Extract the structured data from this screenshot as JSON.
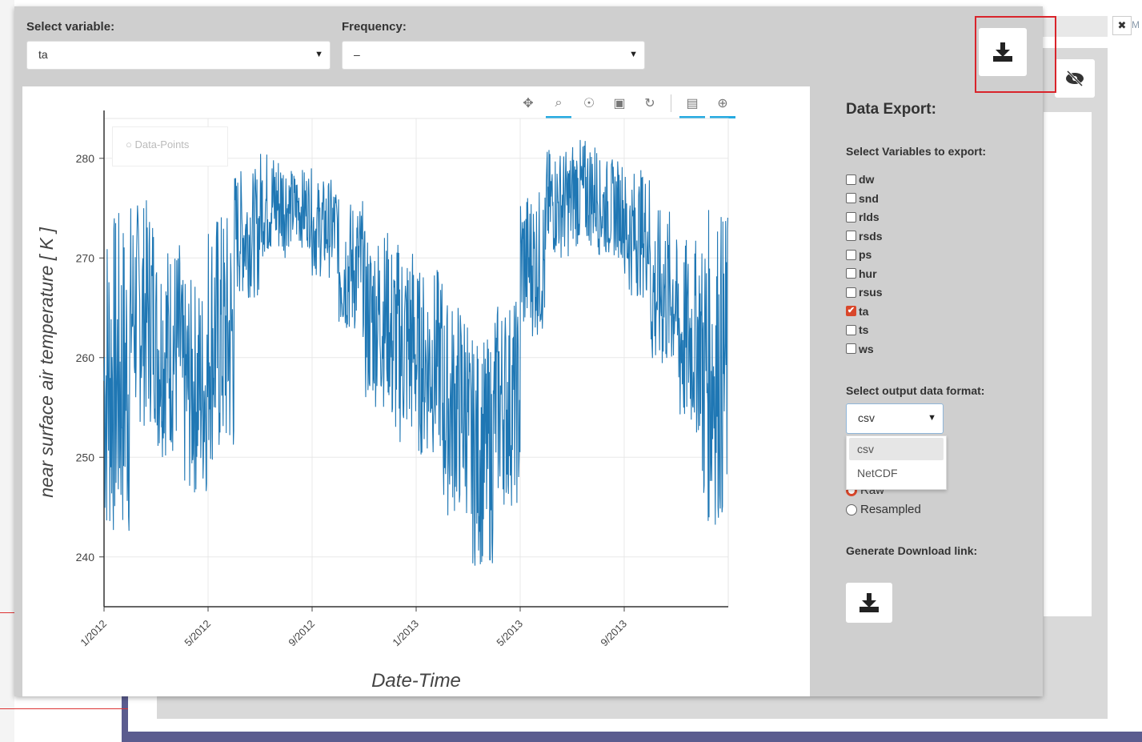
{
  "variable_select": {
    "label": "Select variable:",
    "value": "ta"
  },
  "frequency_select": {
    "label": "Frequency:",
    "value": "–"
  },
  "chart_data": {
    "type": "line",
    "xlabel": "Date-Time",
    "ylabel": "near surface air temperature [ K ]",
    "ylim": [
      235,
      284
    ],
    "x_tick_labels": [
      "1/2012",
      "5/2012",
      "9/2012",
      "1/2013",
      "5/2013",
      "9/2013"
    ],
    "y_ticks": [
      240,
      250,
      260,
      270,
      280
    ],
    "grid": true,
    "legend_position": "top-left",
    "series": [
      {
        "name": "Data-Points",
        "color": "#1f77b4",
        "x": [
          "2012-01",
          "2012-02",
          "2012-03",
          "2012-04",
          "2012-05",
          "2012-06",
          "2012-07",
          "2012-08",
          "2012-09",
          "2012-10",
          "2012-11",
          "2012-12",
          "2013-01",
          "2013-02",
          "2013-03",
          "2013-04",
          "2013-05",
          "2013-06",
          "2013-07",
          "2013-08",
          "2013-09",
          "2013-10",
          "2013-11",
          "2013-12"
        ],
        "min": [
          241,
          253,
          250,
          246,
          249,
          266,
          270,
          271,
          268,
          262,
          255,
          251,
          250,
          244,
          239,
          245,
          262,
          270,
          271,
          270,
          266,
          258,
          252,
          243
        ],
        "max": [
          275,
          276,
          272,
          268,
          275,
          279,
          281,
          279,
          278,
          276,
          273,
          272,
          269,
          266,
          262,
          266,
          277,
          281,
          282,
          280,
          279,
          275,
          272,
          275
        ]
      }
    ]
  },
  "toolbar": {
    "pan_icon": "✥",
    "zoom_icon": "⌕",
    "wheel_icon": "☉",
    "save_icon": "▣",
    "reset_icon": "↻",
    "hover_icon": "▤",
    "crosshair_icon": "⊕"
  },
  "export": {
    "title": "Data Export:",
    "variables_label": "Select Variables to export:",
    "variables": [
      {
        "name": "dw",
        "checked": false
      },
      {
        "name": "snd",
        "checked": false
      },
      {
        "name": "rlds",
        "checked": false
      },
      {
        "name": "rsds",
        "checked": false
      },
      {
        "name": "ps",
        "checked": false
      },
      {
        "name": "hur",
        "checked": false
      },
      {
        "name": "rsus",
        "checked": false
      },
      {
        "name": "ta",
        "checked": true
      },
      {
        "name": "ts",
        "checked": false
      },
      {
        "name": "ws",
        "checked": false
      }
    ],
    "format_label": "Select output data format:",
    "format_value": "csv",
    "format_options": [
      "csv",
      "NetCDF"
    ],
    "radio_partial": "Raw",
    "radio_resampled": "Resampled",
    "generate_label": "Generate Download link:"
  },
  "background": {
    "close_glyph": "✖",
    "tag_text": "M"
  },
  "colors": {
    "accent": "#d9472b",
    "line": "#1f77b4",
    "highlight_border": "#d9242b"
  }
}
